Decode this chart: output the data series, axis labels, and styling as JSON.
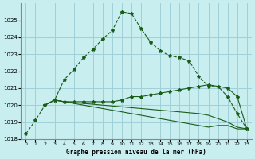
{
  "title": "Graphe pression niveau de la mer (hPa)",
  "background_color": "#c8eef0",
  "grid_color": "#a0d0d8",
  "line_color": "#1a5c1a",
  "x_min": -0.5,
  "x_max": 23.5,
  "y_min": 1018,
  "y_max": 1026,
  "x_ticks": [
    0,
    1,
    2,
    3,
    4,
    5,
    6,
    7,
    8,
    9,
    10,
    11,
    12,
    13,
    14,
    15,
    16,
    17,
    18,
    19,
    20,
    21,
    22,
    23
  ],
  "y_ticks": [
    1018,
    1019,
    1020,
    1021,
    1022,
    1023,
    1024,
    1025
  ],
  "line1": {
    "x": [
      0,
      1,
      2,
      3,
      4,
      5,
      6,
      7,
      8,
      9,
      10,
      11,
      12,
      13,
      14,
      15,
      16,
      17,
      18,
      19,
      20,
      21,
      22,
      23
    ],
    "y": [
      1018.3,
      1019.1,
      1020.0,
      1020.3,
      1021.5,
      1022.1,
      1022.8,
      1023.3,
      1023.9,
      1024.4,
      1025.5,
      1025.4,
      1024.5,
      1023.7,
      1023.2,
      1022.9,
      1022.8,
      1022.6,
      1021.7,
      1021.1,
      1021.1,
      1020.5,
      1019.5,
      1018.6
    ]
  },
  "line2": {
    "x": [
      2,
      3,
      4,
      5,
      6,
      7,
      8,
      9,
      10,
      11,
      12,
      13,
      14,
      15,
      16,
      17,
      18,
      19,
      20,
      21,
      22,
      23
    ],
    "y": [
      1020.0,
      1020.3,
      1020.2,
      1020.2,
      1020.2,
      1020.2,
      1020.2,
      1020.2,
      1020.3,
      1020.5,
      1020.5,
      1020.6,
      1020.7,
      1020.8,
      1020.9,
      1021.0,
      1021.1,
      1021.2,
      1021.1,
      1021.0,
      1020.5,
      1018.6
    ]
  },
  "line3": {
    "x": [
      2,
      3,
      4,
      5,
      6,
      7,
      8,
      9,
      10,
      11,
      12,
      13,
      14,
      15,
      16,
      17,
      18,
      19,
      20,
      21,
      22,
      23
    ],
    "y": [
      1020.0,
      1020.3,
      1020.2,
      1020.15,
      1020.1,
      1020.05,
      1020.0,
      1019.95,
      1019.9,
      1019.85,
      1019.8,
      1019.75,
      1019.7,
      1019.65,
      1019.6,
      1019.55,
      1019.5,
      1019.4,
      1019.2,
      1019.0,
      1018.7,
      1018.6
    ]
  },
  "line4": {
    "x": [
      2,
      3,
      4,
      5,
      6,
      7,
      8,
      9,
      10,
      11,
      12,
      13,
      14,
      15,
      16,
      17,
      18,
      19,
      20,
      21,
      22,
      23
    ],
    "y": [
      1020.0,
      1020.3,
      1020.2,
      1020.1,
      1020.0,
      1019.9,
      1019.8,
      1019.7,
      1019.6,
      1019.5,
      1019.4,
      1019.3,
      1019.2,
      1019.1,
      1019.0,
      1018.9,
      1018.8,
      1018.7,
      1018.8,
      1018.8,
      1018.6,
      1018.6
    ]
  }
}
